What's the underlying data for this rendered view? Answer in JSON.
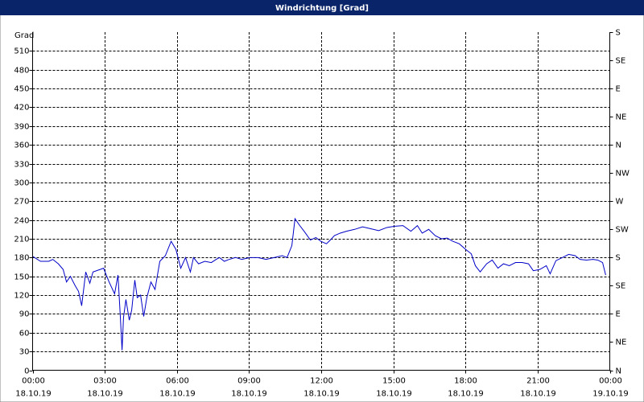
{
  "chart_data": {
    "type": "line",
    "title": "Windrichtung [Grad]",
    "y_label": "Grad",
    "xlim": [
      0,
      24
    ],
    "xticks": [
      {
        "value": 0,
        "label": "00:00"
      },
      {
        "value": 3,
        "label": "03:00"
      },
      {
        "value": 6,
        "label": "06:00"
      },
      {
        "value": 9,
        "label": "09:00"
      },
      {
        "value": 12,
        "label": "12:00"
      },
      {
        "value": 15,
        "label": "15:00"
      },
      {
        "value": 18,
        "label": "18:00"
      },
      {
        "value": 21,
        "label": "21:00"
      },
      {
        "value": 24,
        "label": "00:00"
      }
    ],
    "xtick_dates": [
      "18.10.19",
      "18.10.19",
      "18.10.19",
      "18.10.19",
      "18.10.19",
      "18.10.19",
      "18.10.19",
      "18.10.19",
      "19.10.19"
    ],
    "ylim": [
      0,
      540
    ],
    "yticks": [
      0,
      30,
      60,
      90,
      120,
      150,
      180,
      210,
      240,
      270,
      300,
      330,
      360,
      390,
      420,
      450,
      480,
      510
    ],
    "y2lim": [
      0,
      540
    ],
    "y2ticks": [
      {
        "value": 0,
        "label": "N"
      },
      {
        "value": 45,
        "label": "NE"
      },
      {
        "value": 90,
        "label": "E"
      },
      {
        "value": 135,
        "label": "SE"
      },
      {
        "value": 180,
        "label": "S"
      },
      {
        "value": 225,
        "label": "SW"
      },
      {
        "value": 270,
        "label": "W"
      },
      {
        "value": 315,
        "label": "NW"
      },
      {
        "value": 360,
        "label": "N"
      },
      {
        "value": 405,
        "label": "NE"
      },
      {
        "value": 450,
        "label": "E"
      },
      {
        "value": 495,
        "label": "SE"
      },
      {
        "value": 540,
        "label": "S"
      }
    ],
    "grid": true,
    "series": [
      {
        "color": "#0000c8",
        "x": [
          0,
          0.33,
          0.67,
          0.84,
          1.07,
          1.27,
          1.41,
          1.57,
          1.77,
          1.91,
          2.04,
          2.21,
          2.38,
          2.51,
          2.81,
          2.95,
          3.18,
          3.41,
          3.55,
          3.65,
          3.72,
          3.78,
          3.88,
          4.02,
          4.12,
          4.25,
          4.35,
          4.49,
          4.62,
          4.75,
          4.92,
          5.09,
          5.29,
          5.52,
          5.76,
          5.96,
          6.16,
          6.36,
          6.56,
          6.69,
          6.9,
          7.16,
          7.43,
          7.63,
          7.77,
          7.97,
          8.17,
          8.44,
          8.7,
          9.04,
          9.37,
          9.71,
          10.04,
          10.38,
          10.58,
          10.78,
          10.91,
          11.11,
          11.31,
          11.55,
          11.78,
          11.98,
          12.22,
          12.38,
          12.55,
          12.79,
          13.05,
          13.39,
          13.72,
          14.06,
          14.39,
          14.73,
          15.06,
          15.4,
          15.73,
          16.0,
          16.2,
          16.47,
          16.74,
          17.0,
          17.24,
          17.47,
          17.74,
          18.01,
          18.24,
          18.41,
          18.61,
          18.88,
          19.11,
          19.35,
          19.58,
          19.82,
          20.08,
          20.35,
          20.62,
          20.82,
          21.09,
          21.36,
          21.52,
          21.76,
          22.03,
          22.29,
          22.56,
          22.76,
          23.03,
          23.3,
          23.5,
          23.7,
          23.83
        ],
        "values": [
          182,
          174,
          174,
          177,
          170,
          161,
          141,
          150,
          135,
          126,
          103,
          157,
          139,
          157,
          161,
          163,
          141,
          122,
          152,
          84,
          32,
          84,
          113,
          80,
          96,
          144,
          116,
          120,
          86,
          116,
          141,
          129,
          174,
          183,
          206,
          193,
          163,
          180,
          157,
          180,
          170,
          174,
          172,
          177,
          180,
          174,
          177,
          180,
          177,
          180,
          180,
          177,
          180,
          183,
          180,
          199,
          242,
          231,
          221,
          208,
          212,
          206,
          202,
          208,
          215,
          219,
          222,
          225,
          229,
          226,
          223,
          228,
          230,
          231,
          222,
          231,
          219,
          225,
          215,
          210,
          211,
          206,
          202,
          193,
          186,
          167,
          157,
          170,
          176,
          163,
          170,
          167,
          172,
          172,
          170,
          159,
          161,
          167,
          154,
          175,
          180,
          185,
          183,
          177,
          176,
          177,
          176,
          172,
          152
        ]
      }
    ]
  }
}
